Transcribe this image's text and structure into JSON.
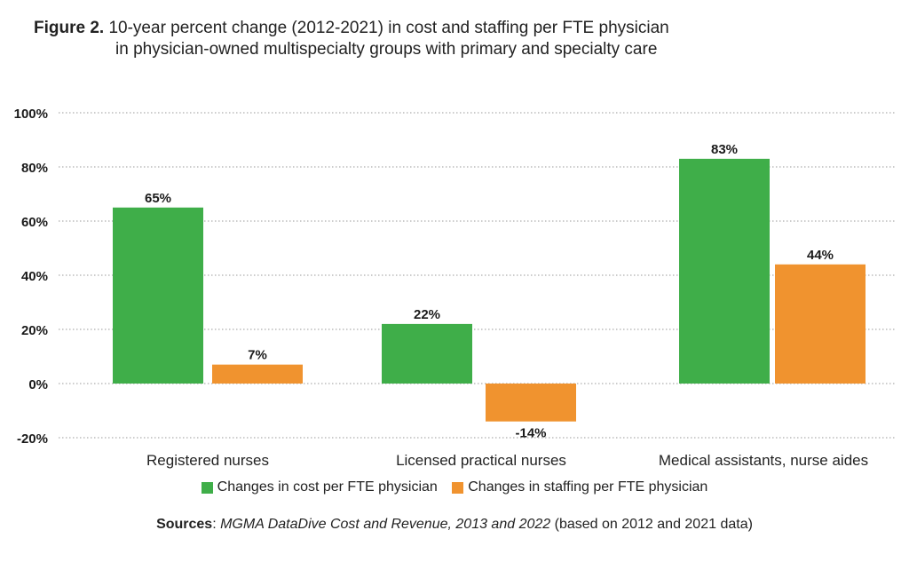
{
  "title": {
    "figure_label": "Figure 2.",
    "line1": "10-year percent change (2012-2021) in cost and staffing per FTE physician",
    "line2": "in physician-owned multispecialty groups with primary and specialty care"
  },
  "chart_data": {
    "type": "bar",
    "title": "Figure 2. 10-year percent change (2012-2021) in cost and staffing per FTE physician in physician-owned multispecialty groups with primary and specialty care",
    "xlabel": "",
    "ylabel": "",
    "categories": [
      "Registered nurses",
      "Licensed practical nurses",
      "Medical assistants, nurse aides"
    ],
    "series": [
      {
        "name": "Changes in cost per FTE physician",
        "color": "#3fae49",
        "values": [
          65,
          22,
          83
        ],
        "labels": [
          "65%",
          "22%",
          "83%"
        ]
      },
      {
        "name": "Changes in staffing per FTE physician",
        "color": "#f0932f",
        "values": [
          7,
          -14,
          44
        ],
        "labels": [
          "7%",
          "-14%",
          "44%"
        ]
      }
    ],
    "ylim": [
      -20,
      100
    ],
    "yticks": [
      100,
      80,
      60,
      40,
      20,
      0,
      -20
    ],
    "ytick_labels": [
      "100%",
      "80%",
      "60%",
      "40%",
      "20%",
      "0%",
      "-20%"
    ],
    "grid": true,
    "grid_style": "dotted",
    "legend_position": "bottom"
  },
  "legend": {
    "items": [
      {
        "label": "Changes in cost per FTE physician",
        "color": "#3fae49"
      },
      {
        "label": "Changes in staffing per FTE physician",
        "color": "#f0932f"
      }
    ]
  },
  "sources": {
    "label": "Sources",
    "colon": ": ",
    "italic_text": "MGMA DataDive Cost and Revenue, 2013 and 2022",
    "plain_text": " (based on 2012 and 2021 data)"
  }
}
